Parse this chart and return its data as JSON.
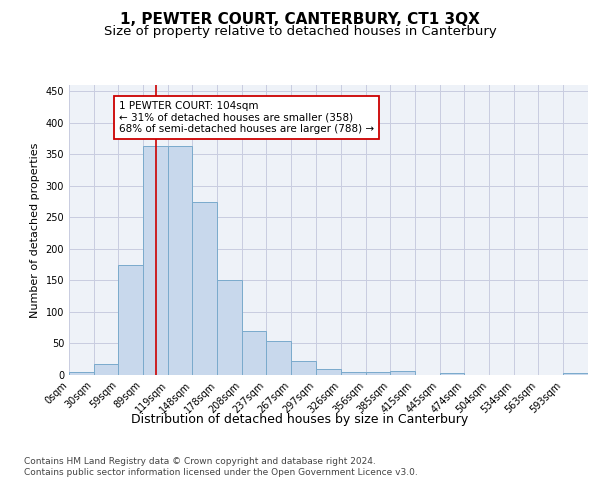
{
  "title": "1, PEWTER COURT, CANTERBURY, CT1 3QX",
  "subtitle": "Size of property relative to detached houses in Canterbury",
  "xlabel": "Distribution of detached houses by size in Canterbury",
  "ylabel": "Number of detached properties",
  "bin_edges": [
    0,
    30,
    59,
    89,
    119,
    148,
    178,
    208,
    237,
    267,
    297,
    326,
    356,
    385,
    415,
    445,
    474,
    504,
    534,
    563,
    593,
    623
  ],
  "bar_heights": [
    4,
    17,
    175,
    363,
    363,
    275,
    151,
    70,
    54,
    23,
    10,
    5,
    5,
    6,
    0,
    3,
    0,
    0,
    0,
    0,
    3
  ],
  "bar_color": "#c8d8ec",
  "bar_edge_color": "#7aaacc",
  "grid_color": "#c8cce0",
  "bg_color": "#eef2f8",
  "property_line_x": 104,
  "property_line_color": "#cc0000",
  "annotation_text": "1 PEWTER COURT: 104sqm\n← 31% of detached houses are smaller (358)\n68% of semi-detached houses are larger (788) →",
  "annotation_box_color": "#ffffff",
  "annotation_box_edge": "#cc0000",
  "tick_labels": [
    "0sqm",
    "30sqm",
    "59sqm",
    "89sqm",
    "119sqm",
    "148sqm",
    "178sqm",
    "208sqm",
    "237sqm",
    "267sqm",
    "297sqm",
    "326sqm",
    "356sqm",
    "385sqm",
    "415sqm",
    "445sqm",
    "474sqm",
    "504sqm",
    "534sqm",
    "563sqm",
    "593sqm"
  ],
  "ylim": [
    0,
    460
  ],
  "yticks": [
    0,
    50,
    100,
    150,
    200,
    250,
    300,
    350,
    400,
    450
  ],
  "footer_text": "Contains HM Land Registry data © Crown copyright and database right 2024.\nContains public sector information licensed under the Open Government Licence v3.0.",
  "title_fontsize": 11,
  "subtitle_fontsize": 9.5,
  "xlabel_fontsize": 9,
  "ylabel_fontsize": 8,
  "tick_fontsize": 7,
  "annotation_fontsize": 7.5,
  "footer_fontsize": 6.5
}
